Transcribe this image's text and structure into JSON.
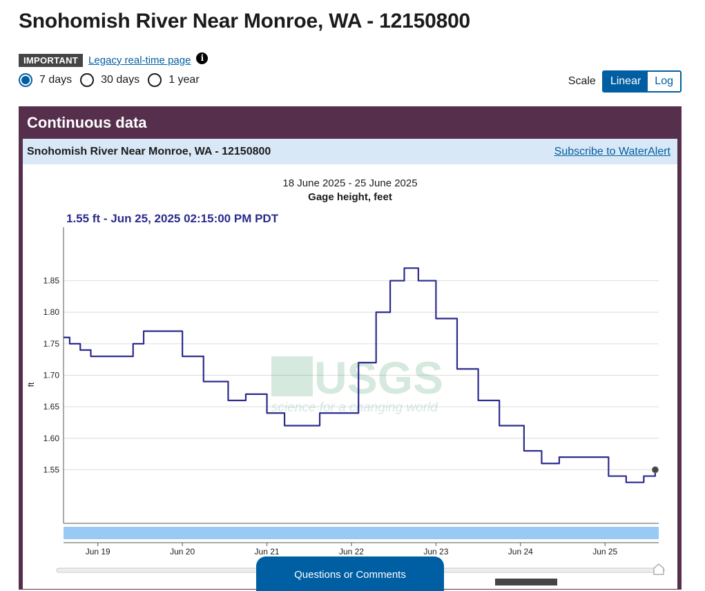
{
  "page": {
    "title": "Snohomish River Near Monroe, WA - 12150800"
  },
  "notice": {
    "badge": "IMPORTANT",
    "link": "Legacy real-time page",
    "info_icon": "info-icon"
  },
  "period": {
    "options": [
      "7 days",
      "30 days",
      "1 year"
    ],
    "selected": "7 days"
  },
  "scale": {
    "label": "Scale",
    "options": [
      "Linear",
      "Log"
    ],
    "selected": "Linear"
  },
  "panel": {
    "header": "Continuous data",
    "site_title": "Snohomish River Near Monroe, WA - 12150800",
    "subscribe_link": "Subscribe to WaterAlert"
  },
  "chart_data": {
    "type": "line",
    "date_range": "18 June 2025 - 25 June 2025",
    "title": "Gage height, feet",
    "current_value": "1.55 ft - Jun 25, 2025 02:15:00 PM PDT",
    "ylabel": "ft",
    "y_ticks": [
      "1.85",
      "1.80",
      "1.75",
      "1.70",
      "1.65",
      "1.60",
      "1.55"
    ],
    "x_ticks": [
      "Jun 19",
      "Jun 20",
      "Jun 21",
      "Jun 22",
      "Jun 23",
      "Jun 24",
      "Jun 25"
    ],
    "ylim": [
      1.465,
      1.935
    ],
    "xlim": [
      "2025-06-18T14:15",
      "2025-06-25T15:15"
    ],
    "grid": true,
    "series": [
      {
        "color": "#2a2a8e",
        "points": [
          [
            "2025-06-18T14:15",
            1.76
          ],
          [
            "2025-06-18T16:00",
            1.75
          ],
          [
            "2025-06-18T19:00",
            1.74
          ],
          [
            "2025-06-18T22:00",
            1.73
          ],
          [
            "2025-06-19T06:00",
            1.73
          ],
          [
            "2025-06-19T10:00",
            1.75
          ],
          [
            "2025-06-19T13:00",
            1.77
          ],
          [
            "2025-06-19T19:00",
            1.77
          ],
          [
            "2025-06-20T00:00",
            1.73
          ],
          [
            "2025-06-20T06:00",
            1.69
          ],
          [
            "2025-06-20T13:00",
            1.66
          ],
          [
            "2025-06-20T18:00",
            1.67
          ],
          [
            "2025-06-21T00:00",
            1.64
          ],
          [
            "2025-06-21T05:00",
            1.62
          ],
          [
            "2025-06-21T09:00",
            1.62
          ],
          [
            "2025-06-21T15:00",
            1.64
          ],
          [
            "2025-06-21T21:00",
            1.64
          ],
          [
            "2025-06-22T02:00",
            1.72
          ],
          [
            "2025-06-22T07:00",
            1.8
          ],
          [
            "2025-06-22T11:00",
            1.85
          ],
          [
            "2025-06-22T15:00",
            1.87
          ],
          [
            "2025-06-22T19:00",
            1.85
          ],
          [
            "2025-06-23T00:00",
            1.79
          ],
          [
            "2025-06-23T06:00",
            1.71
          ],
          [
            "2025-06-23T12:00",
            1.66
          ],
          [
            "2025-06-23T18:00",
            1.62
          ],
          [
            "2025-06-24T01:00",
            1.58
          ],
          [
            "2025-06-24T06:00",
            1.56
          ],
          [
            "2025-06-24T11:00",
            1.57
          ],
          [
            "2025-06-24T19:00",
            1.57
          ],
          [
            "2025-06-25T01:00",
            1.54
          ],
          [
            "2025-06-25T06:00",
            1.53
          ],
          [
            "2025-06-25T11:00",
            1.54
          ],
          [
            "2025-06-25T14:15",
            1.55
          ]
        ]
      }
    ],
    "watermark": {
      "logo": "USGS",
      "tagline": "science for a changing world"
    }
  },
  "footer": {
    "questions": "Questions or Comments"
  }
}
